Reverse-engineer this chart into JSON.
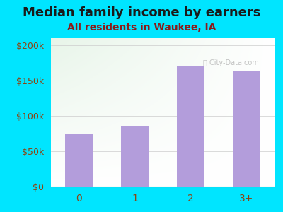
{
  "categories": [
    "0",
    "1",
    "2",
    "3+"
  ],
  "values": [
    75000,
    85000,
    170000,
    163000
  ],
  "bar_color": "#b39ddb",
  "title": "Median family income by earners",
  "subtitle": "All residents in Waukee, IA",
  "title_color": "#1a1a1a",
  "subtitle_color": "#8b1a1a",
  "ylabel_ticks": [
    0,
    50000,
    100000,
    150000,
    200000
  ],
  "ylabel_labels": [
    "$0",
    "$50k",
    "$100k",
    "$150k",
    "$200k"
  ],
  "ylim": [
    0,
    210000
  ],
  "xlim": [
    -0.5,
    3.5
  ],
  "background_color": "#00e5ff",
  "tl_color": [
    0.909,
    0.961,
    0.914
  ],
  "br_color": [
    1.0,
    1.0,
    1.0
  ],
  "tick_color": "#8b4513",
  "title_fontsize": 13,
  "subtitle_fontsize": 10
}
